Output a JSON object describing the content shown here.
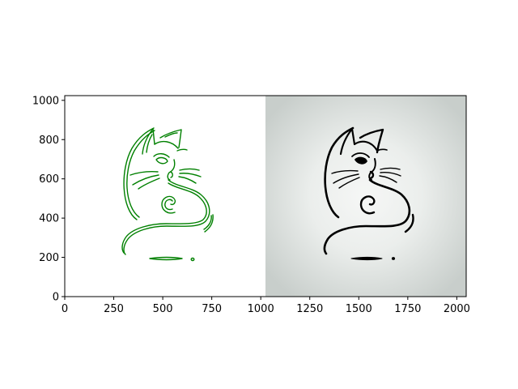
{
  "chart_data": {
    "type": "image",
    "title": "",
    "xlabel": "",
    "ylabel": "",
    "xlim": [
      0,
      2048
    ],
    "ylim": [
      0,
      1024
    ],
    "xticks": [
      0,
      250,
      500,
      750,
      1000,
      1250,
      1500,
      1750,
      2000
    ],
    "yticks": [
      0,
      200,
      400,
      600,
      800,
      1000
    ],
    "grid": false,
    "panels": [
      {
        "name": "left",
        "x_range": [
          0,
          1024
        ],
        "background": "#ffffff",
        "stroke_color": "#008000",
        "style": "outlined line-art cat (edge tracing)"
      },
      {
        "name": "right",
        "x_range": [
          1024,
          2048
        ],
        "background": "radial gradient #f4f5f4 to #c9cfcc",
        "stroke_color": "#000000",
        "style": "solid line-art cat"
      }
    ],
    "colors": {
      "edge": "#008000",
      "ink": "#000000",
      "spine": "#000000"
    }
  }
}
